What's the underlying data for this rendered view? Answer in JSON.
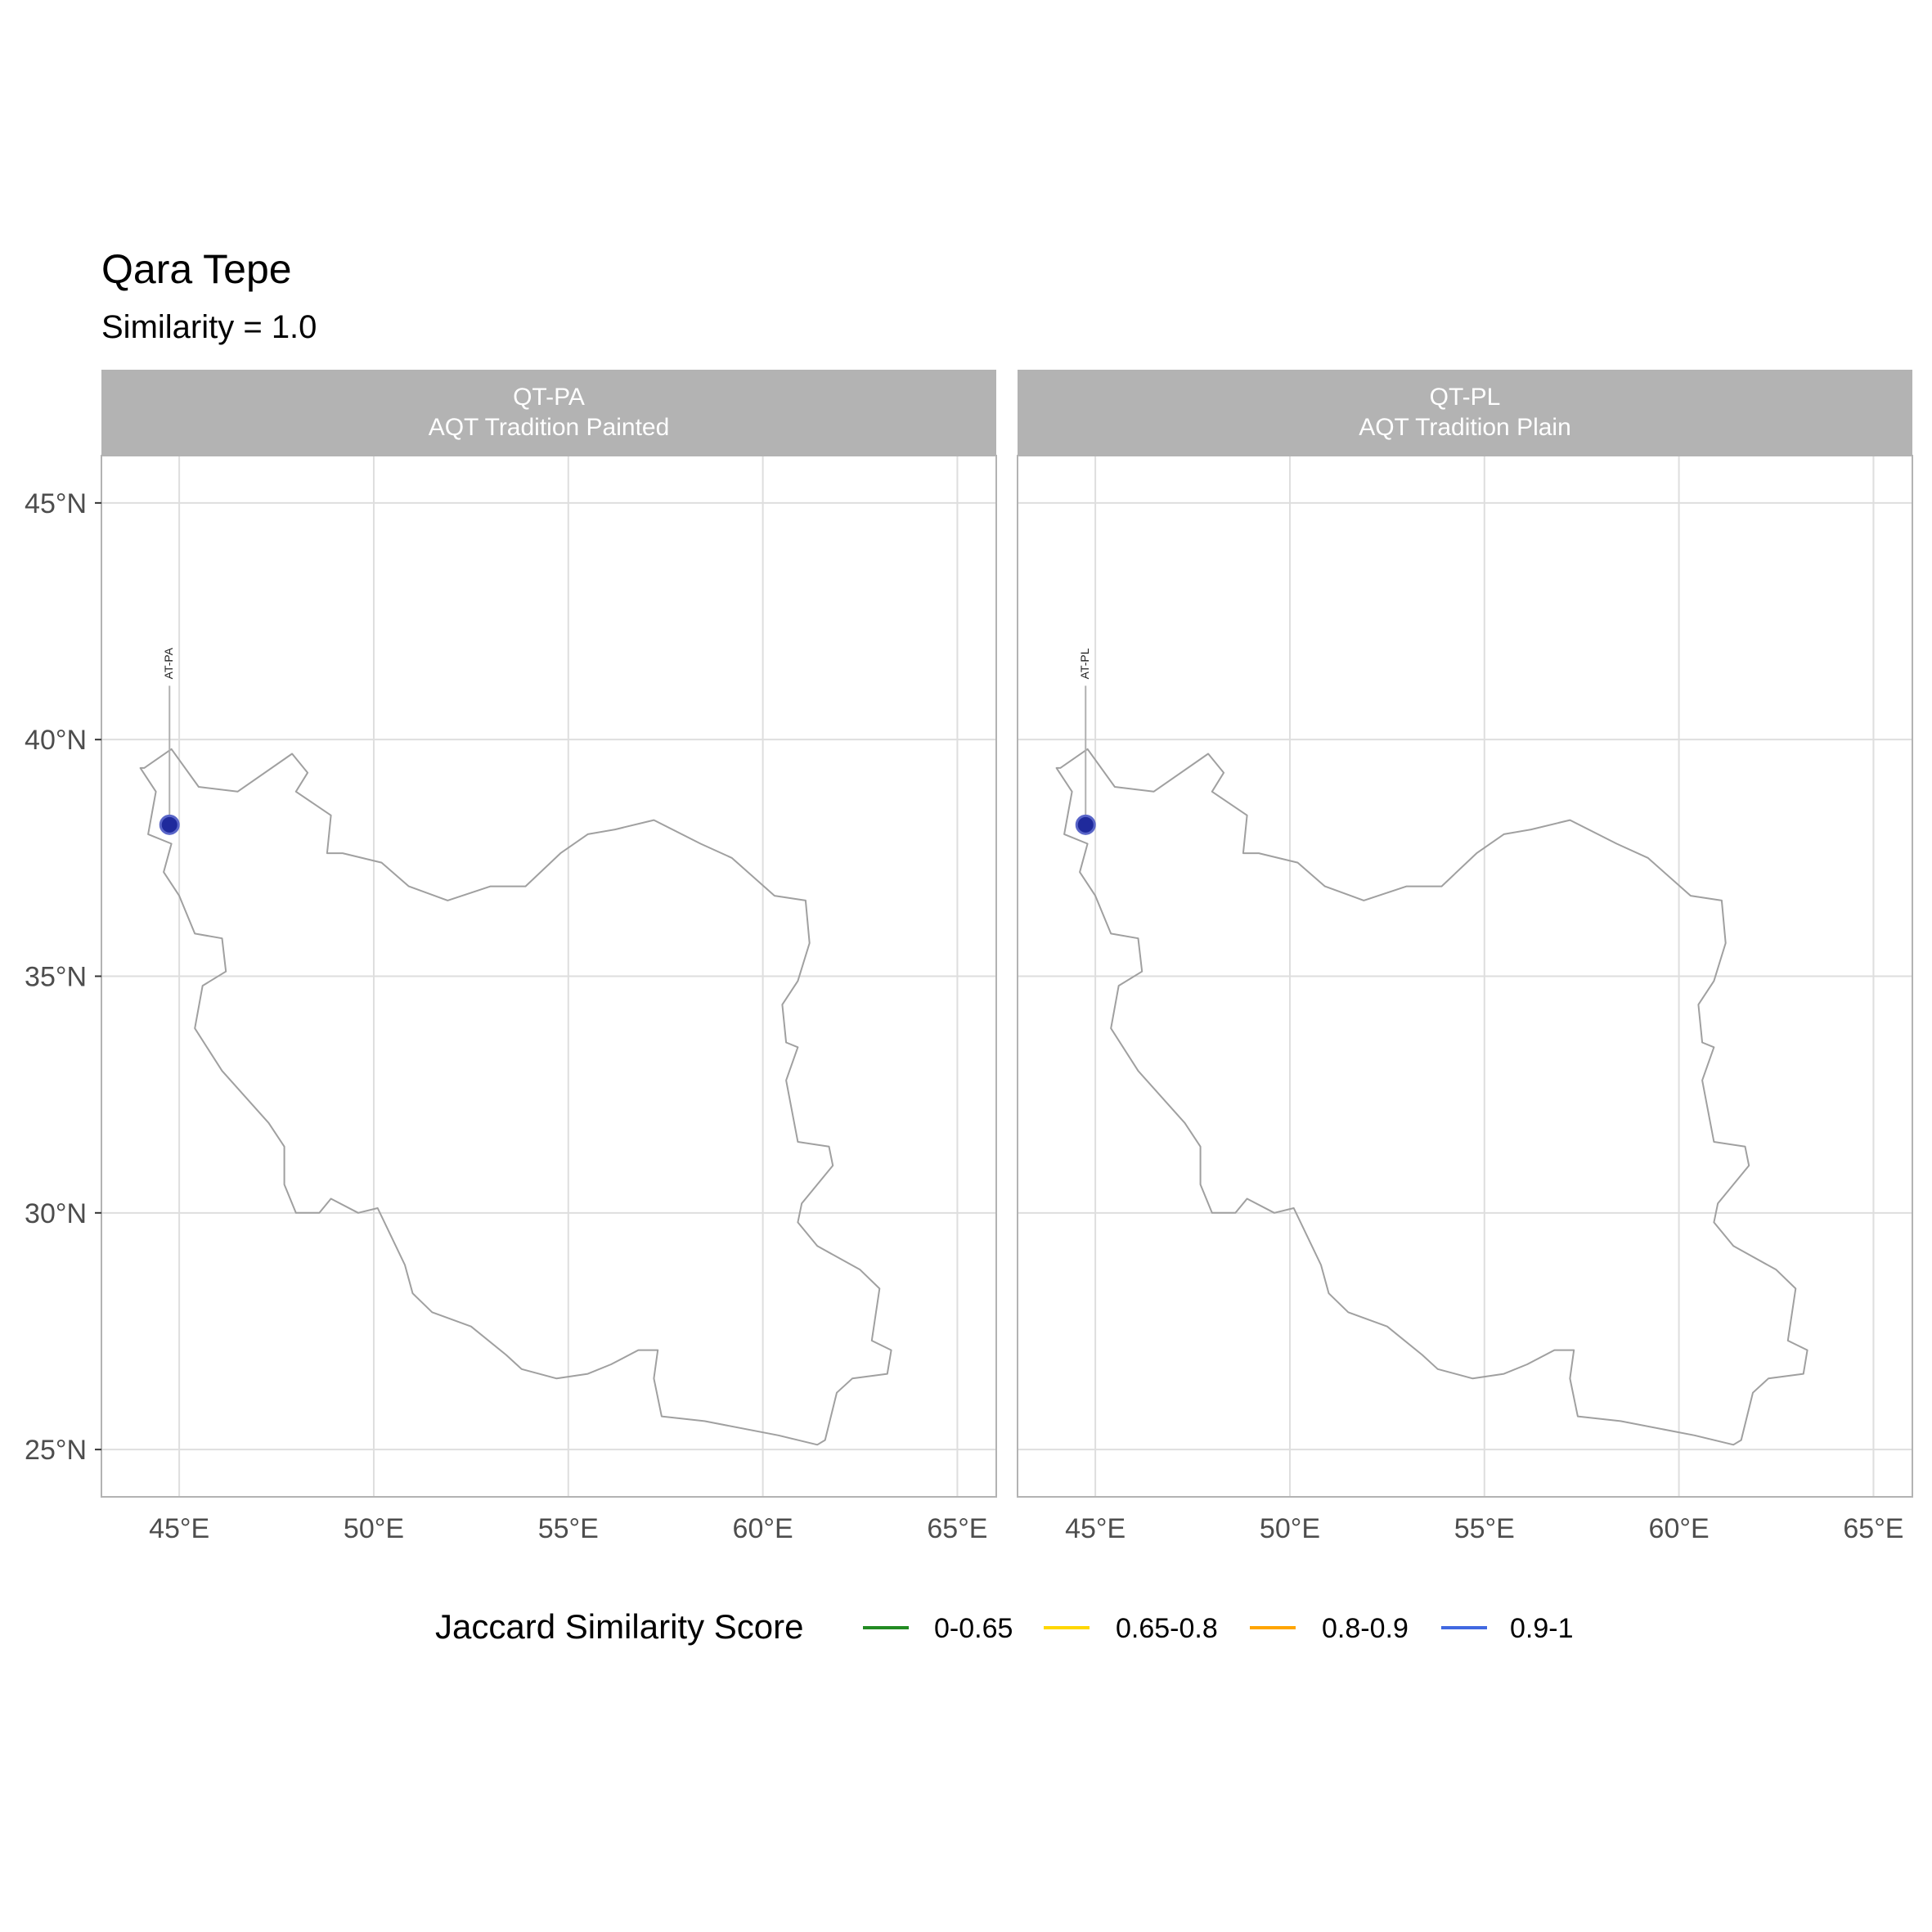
{
  "title": "Qara Tepe",
  "subtitle": "Similarity = 1.0",
  "chart_data": {
    "type": "map",
    "xlim": [
      43,
      66
    ],
    "ylim": [
      24,
      46
    ],
    "x_ticks": [
      45,
      50,
      55,
      60,
      65
    ],
    "x_tick_labels": [
      "45°E",
      "50°E",
      "55°E",
      "60°E",
      "65°E"
    ],
    "y_ticks": [
      25,
      30,
      35,
      40,
      45
    ],
    "y_tick_labels": [
      "25°N",
      "30°N",
      "35°N",
      "40°N",
      "45°N"
    ],
    "grid": true,
    "panels": [
      {
        "strip_line1": "QT-PA",
        "strip_line2": "AQT Tradition Painted",
        "points": [
          {
            "label": "AT-PA",
            "lon": 44.75,
            "lat": 38.2
          }
        ]
      },
      {
        "strip_line1": "QT-PL",
        "strip_line2": "AQT Tradition Plain",
        "points": [
          {
            "label": "AT-PL",
            "lon": 44.75,
            "lat": 38.2
          }
        ]
      }
    ],
    "outline": [
      [
        44.1,
        39.4
      ],
      [
        44.8,
        39.8
      ],
      [
        45.5,
        39.0
      ],
      [
        46.5,
        38.9
      ],
      [
        47.9,
        39.7
      ],
      [
        48.3,
        39.3
      ],
      [
        48.0,
        38.9
      ],
      [
        48.9,
        38.4
      ],
      [
        48.8,
        37.6
      ],
      [
        49.2,
        37.6
      ],
      [
        50.2,
        37.4
      ],
      [
        50.9,
        36.9
      ],
      [
        51.9,
        36.6
      ],
      [
        53.0,
        36.9
      ],
      [
        53.9,
        36.9
      ],
      [
        54.8,
        37.6
      ],
      [
        55.5,
        38.0
      ],
      [
        56.2,
        38.1
      ],
      [
        57.2,
        38.3
      ],
      [
        58.4,
        37.8
      ],
      [
        59.2,
        37.5
      ],
      [
        60.3,
        36.7
      ],
      [
        61.1,
        36.6
      ],
      [
        61.2,
        35.7
      ],
      [
        60.9,
        34.9
      ],
      [
        60.5,
        34.4
      ],
      [
        60.6,
        33.6
      ],
      [
        60.9,
        33.5
      ],
      [
        60.6,
        32.8
      ],
      [
        60.9,
        31.5
      ],
      [
        61.7,
        31.4
      ],
      [
        61.8,
        31.0
      ],
      [
        61.0,
        30.2
      ],
      [
        60.9,
        29.8
      ],
      [
        61.4,
        29.3
      ],
      [
        62.5,
        28.8
      ],
      [
        63.0,
        28.4
      ],
      [
        62.8,
        27.3
      ],
      [
        63.3,
        27.1
      ],
      [
        63.2,
        26.6
      ],
      [
        62.3,
        26.5
      ],
      [
        61.9,
        26.2
      ],
      [
        61.6,
        25.2
      ],
      [
        61.4,
        25.1
      ],
      [
        60.4,
        25.3
      ],
      [
        58.5,
        25.6
      ],
      [
        57.4,
        25.7
      ],
      [
        57.2,
        26.5
      ],
      [
        57.3,
        27.1
      ],
      [
        56.8,
        27.1
      ],
      [
        56.1,
        26.8
      ],
      [
        55.5,
        26.6
      ],
      [
        54.7,
        26.5
      ],
      [
        53.8,
        26.7
      ],
      [
        53.4,
        27.0
      ],
      [
        52.5,
        27.6
      ],
      [
        51.5,
        27.9
      ],
      [
        51.0,
        28.3
      ],
      [
        50.8,
        28.9
      ],
      [
        50.1,
        30.1
      ],
      [
        49.6,
        30.0
      ],
      [
        48.9,
        30.3
      ],
      [
        48.6,
        30.0
      ],
      [
        48.0,
        30.0
      ],
      [
        47.7,
        30.6
      ],
      [
        47.7,
        31.4
      ],
      [
        47.3,
        31.9
      ],
      [
        46.1,
        33.0
      ],
      [
        45.4,
        33.9
      ],
      [
        45.6,
        34.8
      ],
      [
        46.2,
        35.1
      ],
      [
        46.1,
        35.8
      ],
      [
        45.4,
        35.9
      ],
      [
        45.0,
        36.7
      ],
      [
        44.6,
        37.2
      ],
      [
        44.8,
        37.8
      ],
      [
        44.2,
        38.0
      ],
      [
        44.4,
        38.9
      ],
      [
        44.0,
        39.4
      ],
      [
        44.1,
        39.4
      ]
    ],
    "legend": {
      "title": "Jaccard Similarity Score",
      "position": "bottom",
      "items": [
        {
          "label": "0-0.65",
          "color": "#228b22"
        },
        {
          "label": "0.65-0.8",
          "color": "#ffd700"
        },
        {
          "label": "0.8-0.9",
          "color": "#ffa500"
        },
        {
          "label": "0.9-1",
          "color": "#4169e1"
        }
      ]
    },
    "point_color": "#1f2a9c"
  }
}
